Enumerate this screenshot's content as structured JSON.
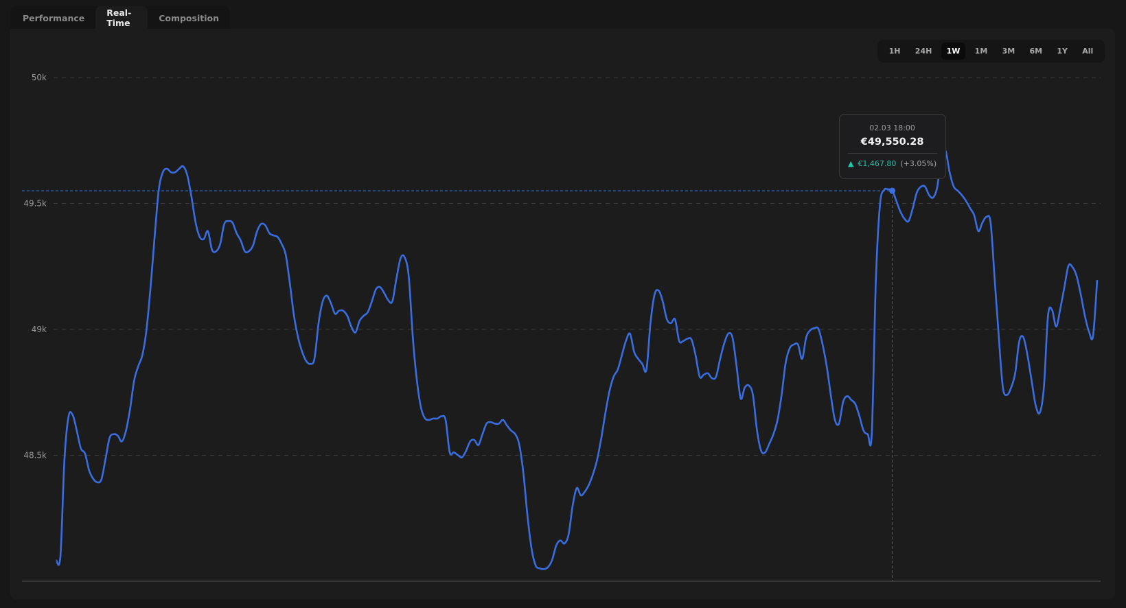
{
  "tabs": [
    {
      "label": "Performance",
      "active": false
    },
    {
      "label": "Real-Time",
      "active": true
    },
    {
      "label": "Composition",
      "active": false
    }
  ],
  "ranges": [
    {
      "label": "1H"
    },
    {
      "label": "24H"
    },
    {
      "label": "1W",
      "active": true
    },
    {
      "label": "1M"
    },
    {
      "label": "3M"
    },
    {
      "label": "6M"
    },
    {
      "label": "1Y"
    },
    {
      "label": "All"
    }
  ],
  "tooltip": {
    "date": "02.03 18:00",
    "value": "€49,550.28",
    "change": "€1,467.80",
    "change_pct": "(+3.05%)",
    "arrow_icon": "triangle-up-icon"
  },
  "colors": {
    "line": "#3a6ee0",
    "positive": "#22c7a9",
    "background": "#1c1c1c"
  },
  "chart_data": {
    "type": "line",
    "title": "",
    "xlabel": "",
    "ylabel": "",
    "ylim": [
      48000,
      50000
    ],
    "yticks": [
      {
        "value": 50000,
        "label": "50k"
      },
      {
        "value": 49500,
        "label": "49.5k"
      },
      {
        "value": 49000,
        "label": "49k"
      },
      {
        "value": 48500,
        "label": "48.5k"
      }
    ],
    "grid": "horizontal-dashed",
    "highlight": {
      "label": "02.03 18:00",
      "value": 49550.28
    },
    "values": [
      48082,
      48099,
      48484,
      48655,
      48660,
      48598,
      48527,
      48507,
      48441,
      48407,
      48393,
      48404,
      48484,
      48569,
      48584,
      48578,
      48555,
      48598,
      48683,
      48797,
      48854,
      48897,
      48997,
      49168,
      49367,
      49553,
      49624,
      49638,
      49624,
      49624,
      49638,
      49647,
      49610,
      49524,
      49424,
      49367,
      49359,
      49390,
      49316,
      49310,
      49339,
      49419,
      49430,
      49424,
      49382,
      49353,
      49310,
      49310,
      49333,
      49390,
      49419,
      49413,
      49382,
      49373,
      49367,
      49339,
      49296,
      49182,
      49054,
      48968,
      48911,
      48874,
      48863,
      48883,
      49025,
      49111,
      49134,
      49105,
      49062,
      49074,
      49074,
      49054,
      49011,
      48988,
      49034,
      49054,
      49068,
      49111,
      49159,
      49168,
      49145,
      49116,
      49111,
      49202,
      49282,
      49287,
      49211,
      48968,
      48797,
      48689,
      48646,
      48641,
      48646,
      48646,
      48655,
      48641,
      48512,
      48512,
      48501,
      48492,
      48518,
      48555,
      48561,
      48541,
      48584,
      48626,
      48632,
      48626,
      48626,
      48641,
      48618,
      48598,
      48584,
      48541,
      48427,
      48256,
      48128,
      48062,
      48051,
      48048,
      48056,
      48085,
      48142,
      48162,
      48150,
      48185,
      48299,
      48370,
      48341,
      48356,
      48384,
      48427,
      48484,
      48569,
      48669,
      48755,
      48812,
      48840,
      48897,
      48954,
      48983,
      48911,
      48883,
      48863,
      48840,
      49025,
      49139,
      49154,
      49111,
      49040,
      49025,
      49040,
      48954,
      48954,
      48963,
      48960,
      48897,
      48812,
      48820,
      48826,
      48806,
      48812,
      48883,
      48945,
      48983,
      48968,
      48854,
      48726,
      48769,
      48777,
      48740,
      48598,
      48518,
      48512,
      48546,
      48584,
      48641,
      48740,
      48869,
      48926,
      48940,
      48940,
      48883,
      48968,
      48997,
      49005,
      49002,
      48940,
      48854,
      48740,
      48641,
      48626,
      48712,
      48735,
      48720,
      48703,
      48655,
      48598,
      48584,
      48584,
      49196,
      49496,
      49553,
      49556,
      49550.28,
      49510,
      49467,
      49439,
      49430,
      49481,
      49544,
      49567,
      49567,
      49533,
      49524,
      49567,
      49695,
      49709,
      49624,
      49567,
      49550,
      49533,
      49510,
      49481,
      49453,
      49390,
      49424,
      49447,
      49424,
      49196,
      48968,
      48769,
      48740,
      48769,
      48826,
      48954,
      48968,
      48897,
      48797,
      48698,
      48669,
      48769,
      49054,
      49077,
      49011,
      49082,
      49168,
      49253,
      49247,
      49211,
      49139,
      49054,
      48991,
      48974,
      49196
    ]
  }
}
